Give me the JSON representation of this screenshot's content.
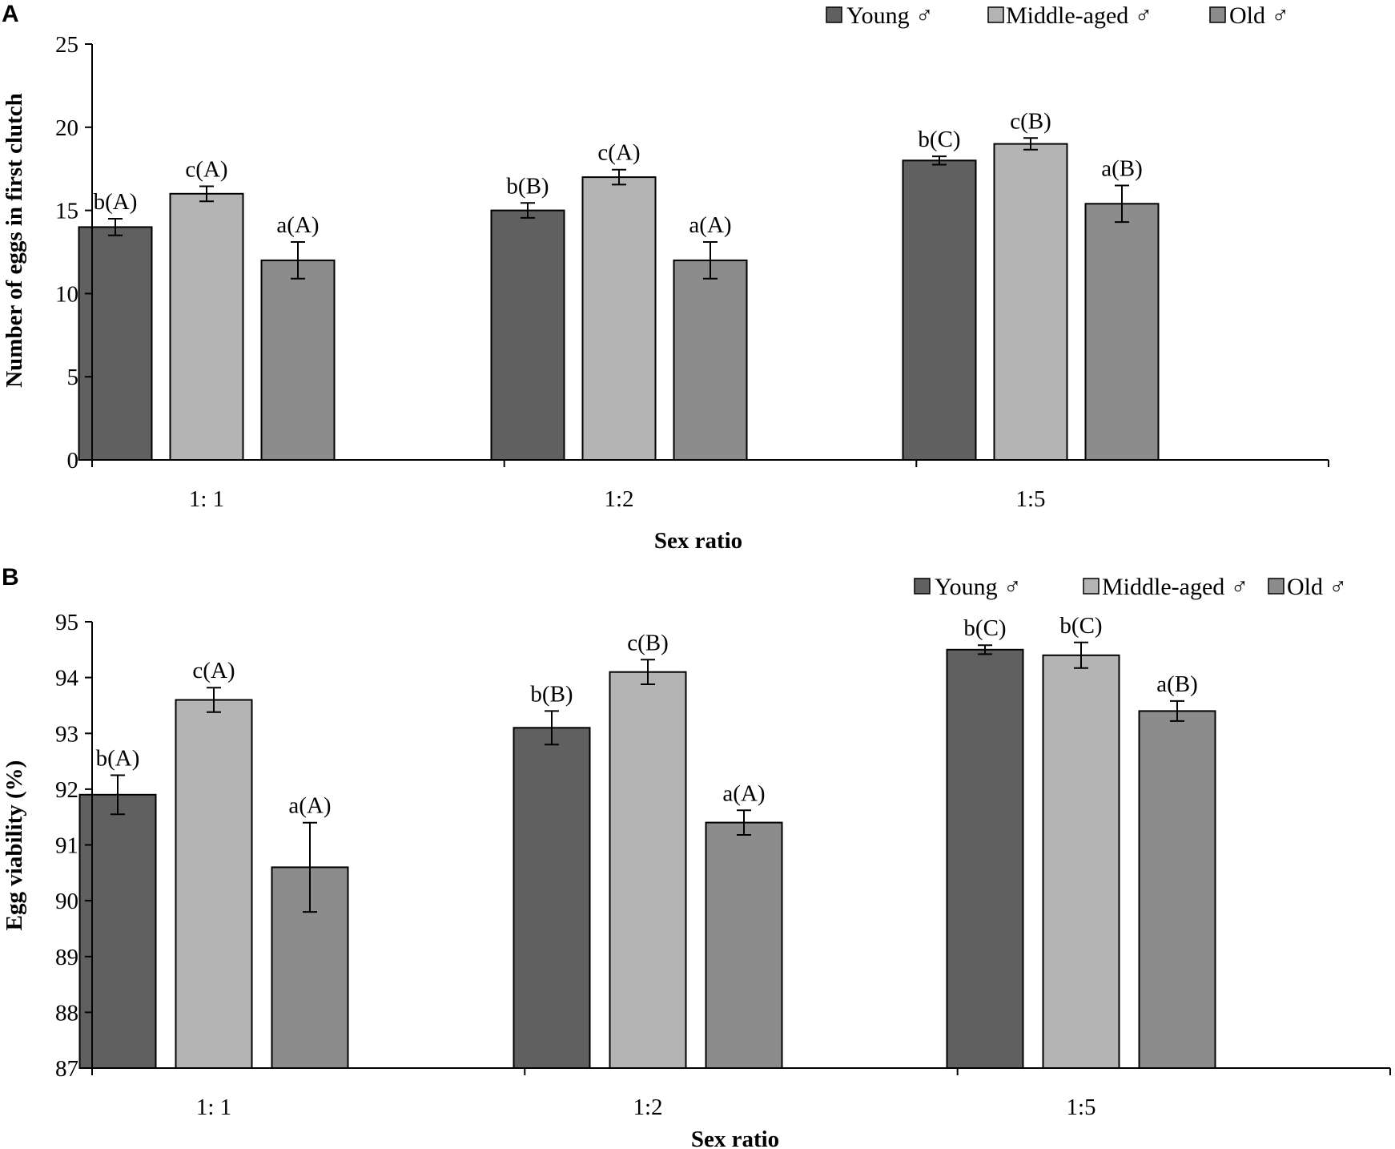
{
  "chart_data": [
    {
      "panel": "A",
      "type": "bar",
      "title": "",
      "xlabel": "Sex ratio",
      "ylabel": "Number of eggs in first clutch",
      "ylim": [
        0,
        25
      ],
      "yticks": [
        0,
        5,
        10,
        15,
        20,
        25
      ],
      "ytick_labels": [
        "0",
        "5",
        "10",
        "15",
        "20",
        "25"
      ],
      "categories": [
        "1: 1",
        "1:2",
        "1:5"
      ],
      "legend": [
        "Young ♂",
        "Middle-aged ♂",
        "Old ♂"
      ],
      "legend_position": "top-right",
      "series": [
        {
          "name": "Young ♂",
          "color": "#606060",
          "values": [
            14.0,
            15.0,
            18.0
          ],
          "errors": [
            0.5,
            0.45,
            0.25
          ],
          "labels": [
            "b(A)",
            "b(B)",
            "b(C)"
          ]
        },
        {
          "name": "Middle-aged ♂",
          "color": "#b4b4b4",
          "values": [
            16.0,
            17.0,
            19.0
          ],
          "errors": [
            0.45,
            0.45,
            0.35
          ],
          "labels": [
            "c(A)",
            "c(A)",
            "c(B)"
          ]
        },
        {
          "name": "Old ♂",
          "color": "#8c8c8c",
          "values": [
            12.0,
            12.0,
            15.4
          ],
          "errors": [
            1.1,
            1.1,
            1.1
          ],
          "labels": [
            "a(A)",
            "a(A)",
            "a(B)"
          ]
        }
      ]
    },
    {
      "panel": "B",
      "type": "bar",
      "title": "",
      "xlabel": "Sex ratio",
      "ylabel": "Egg viability (%)",
      "ylim": [
        87,
        95
      ],
      "yticks": [
        87,
        88,
        89,
        90,
        91,
        92,
        93,
        94,
        95
      ],
      "ytick_labels": [
        "87",
        "88",
        "89",
        "90",
        "91",
        "92",
        "93",
        "94",
        "95"
      ],
      "categories": [
        "1: 1",
        "1:2",
        "1:5"
      ],
      "legend": [
        "Young ♂",
        "Middle-aged ♂",
        "Old ♂"
      ],
      "legend_position": "top-right",
      "series": [
        {
          "name": "Young ♂",
          "color": "#606060",
          "values": [
            91.9,
            93.1,
            94.5
          ],
          "errors": [
            0.35,
            0.3,
            0.08
          ],
          "labels": [
            "b(A)",
            "b(B)",
            "b(C)"
          ]
        },
        {
          "name": "Middle-aged ♂",
          "color": "#b4b4b4",
          "values": [
            93.6,
            94.1,
            94.4
          ],
          "errors": [
            0.22,
            0.22,
            0.23
          ],
          "labels": [
            "c(A)",
            "c(B)",
            "b(C)"
          ]
        },
        {
          "name": "Old ♂",
          "color": "#8c8c8c",
          "values": [
            90.6,
            91.4,
            93.4
          ],
          "errors": [
            0.8,
            0.22,
            0.18
          ],
          "labels": [
            "a(A)",
            "a(A)",
            "a(B)"
          ]
        }
      ]
    }
  ]
}
